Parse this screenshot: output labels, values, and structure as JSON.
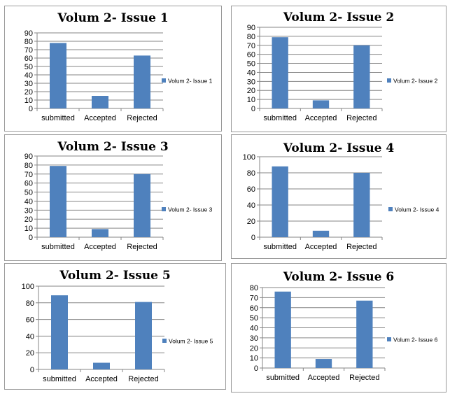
{
  "colors": {
    "bar": "#4f81bd",
    "grid": "#868686",
    "border": "#9a9a9a"
  },
  "chart_data": [
    {
      "type": "bar",
      "title": "Volum 2- Issue 1",
      "categories": [
        "submitted",
        "Accepted",
        "Rejected"
      ],
      "series": [
        {
          "name": "Volum 2- Issue 1",
          "values": [
            78,
            15,
            63
          ]
        }
      ],
      "ylim": [
        0,
        90
      ],
      "ystep": 10,
      "grid": true,
      "legend": "right"
    },
    {
      "type": "bar",
      "title": "Volum 2- Issue 2",
      "categories": [
        "submitted",
        "Accepted",
        "Rejected"
      ],
      "series": [
        {
          "name": "Volum 2- Issue 2",
          "values": [
            79,
            9,
            70
          ]
        }
      ],
      "ylim": [
        0,
        90
      ],
      "ystep": 10,
      "grid": true,
      "legend": "right"
    },
    {
      "type": "bar",
      "title": "Volum 2- Issue 3",
      "categories": [
        "submitted",
        "Accepted",
        "Rejected"
      ],
      "series": [
        {
          "name": "Volum 2- Issue 3",
          "values": [
            79,
            9,
            70
          ]
        }
      ],
      "ylim": [
        0,
        90
      ],
      "ystep": 10,
      "grid": true,
      "legend": "right"
    },
    {
      "type": "bar",
      "title": "Volum 2- Issue 4",
      "categories": [
        "submitted",
        "Accepted",
        "Rejected"
      ],
      "series": [
        {
          "name": "Volum 2- Issue 4",
          "values": [
            88,
            8,
            80
          ]
        }
      ],
      "ylim": [
        0,
        100
      ],
      "ystep": 20,
      "grid": true,
      "legend": "right"
    },
    {
      "type": "bar",
      "title": "Volum 2- Issue 5",
      "categories": [
        "submitted",
        "Accepted",
        "Rejected"
      ],
      "series": [
        {
          "name": "Volum 2- Issue 5",
          "values": [
            89,
            8,
            81
          ]
        }
      ],
      "ylim": [
        0,
        100
      ],
      "ystep": 20,
      "grid": true,
      "legend": "right"
    },
    {
      "type": "bar",
      "title": "Volum 2- Issue 6",
      "categories": [
        "submitted",
        "Accepted",
        "Rejected"
      ],
      "series": [
        {
          "name": "Volum 2- Issue 6",
          "values": [
            76,
            9,
            67
          ]
        }
      ],
      "ylim": [
        0,
        80
      ],
      "ystep": 10,
      "grid": true,
      "legend": "right"
    }
  ]
}
